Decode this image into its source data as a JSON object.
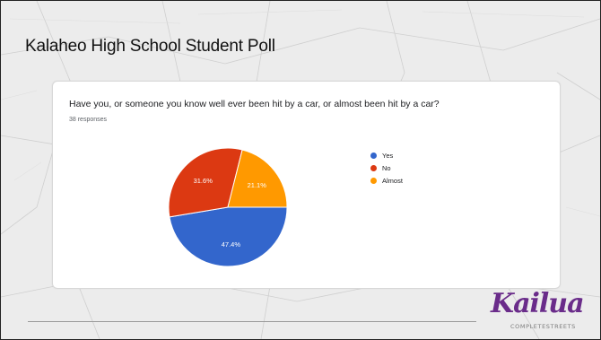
{
  "slide": {
    "title": "Kalaheo High School Student Poll"
  },
  "card": {
    "question": "Have you, or someone you know well ever been hit by a car, or almost been hit by a car?",
    "responses": "38 responses"
  },
  "logo": {
    "script_text": "Kailua",
    "subtitle": "COMPLETESTREETS"
  },
  "chart_data": {
    "type": "pie",
    "categories": [
      "Yes",
      "No",
      "Almost"
    ],
    "values": [
      47.4,
      31.6,
      21.1
    ],
    "labels": [
      "47.4%",
      "31.6%",
      "21.1%"
    ],
    "colors": [
      "#3366cc",
      "#dc3912",
      "#ff9900"
    ],
    "legend": "right"
  }
}
